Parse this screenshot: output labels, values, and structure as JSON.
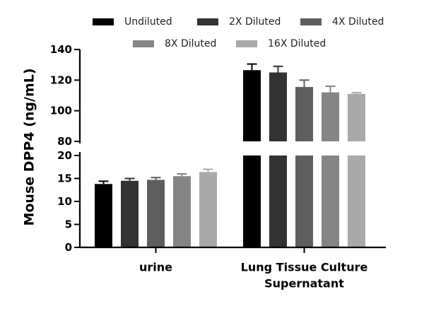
{
  "chart_data": {
    "type": "bar",
    "ylabel": "Mouse DPP4 (ng/mL)",
    "xlabel": "",
    "categories": [
      {
        "label_lines": [
          "urine"
        ]
      },
      {
        "label_lines": [
          "Lung Tissue Culture",
          "Supernatant"
        ]
      }
    ],
    "series": [
      {
        "name": "Undiluted",
        "color": "#000000",
        "values": [
          13.8,
          126.5
        ],
        "errors": [
          0.6,
          4.0
        ]
      },
      {
        "name": "2X Diluted",
        "color": "#333333",
        "values": [
          14.5,
          125.0
        ],
        "errors": [
          0.5,
          4.0
        ]
      },
      {
        "name": "4X Diluted",
        "color": "#5e5e5e",
        "values": [
          14.7,
          115.5
        ],
        "errors": [
          0.5,
          4.5
        ]
      },
      {
        "name": "8X Diluted",
        "color": "#858585",
        "values": [
          15.5,
          112.0
        ],
        "errors": [
          0.5,
          4.0
        ]
      },
      {
        "name": "16X Diluted",
        "color": "#a9a9a9",
        "values": [
          16.4,
          111.0
        ],
        "errors": [
          0.6,
          0.8
        ]
      }
    ],
    "y_axis_segments": [
      {
        "range": [
          0,
          20
        ],
        "ticks": [
          "0",
          "5",
          "10",
          "15",
          "20"
        ]
      },
      {
        "range": [
          80,
          140
        ],
        "ticks": [
          "80",
          "100",
          "120",
          "140"
        ]
      }
    ],
    "axis_break": true,
    "grid": false,
    "legend_placement": "top"
  }
}
